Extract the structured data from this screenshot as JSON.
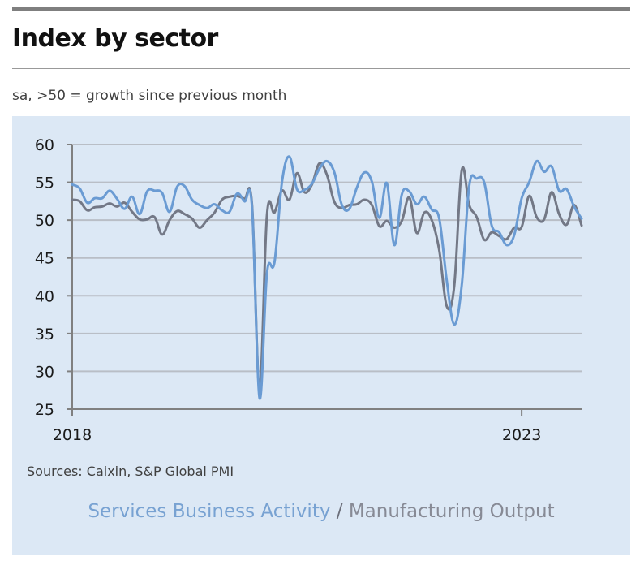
{
  "header": {
    "title": "Index by sector",
    "subtitle": "sa, >50 = growth since previous month"
  },
  "footer": {
    "source": "Sources: Caixin, S&P Global PMI"
  },
  "legend": {
    "separator": "/"
  },
  "colors": {
    "services": "#6a9bd3",
    "manufacturing": "#737886",
    "panel_background": "#dce8f5",
    "gridline": "#b9bec6",
    "axis": "#808080"
  },
  "chart_data": {
    "type": "line",
    "title": "Index by sector",
    "subtitle": "sa, >50 = growth since previous month",
    "xlabel": "",
    "ylabel": "",
    "xlim": [
      "2018-01",
      "2023-09"
    ],
    "ylim": [
      25,
      60
    ],
    "yticks": [
      25,
      30,
      35,
      40,
      45,
      50,
      55,
      60
    ],
    "xticks": [
      {
        "date": "2018-01",
        "label": "2018"
      },
      {
        "date": "2023-01",
        "label": "2023"
      }
    ],
    "grid": true,
    "legend_placement": "bottom-center",
    "x": [
      "2018-01",
      "2018-02",
      "2018-03",
      "2018-04",
      "2018-05",
      "2018-06",
      "2018-07",
      "2018-08",
      "2018-09",
      "2018-10",
      "2018-11",
      "2018-12",
      "2019-01",
      "2019-02",
      "2019-03",
      "2019-04",
      "2019-05",
      "2019-06",
      "2019-07",
      "2019-08",
      "2019-09",
      "2019-10",
      "2019-11",
      "2019-12",
      "2020-01",
      "2020-02",
      "2020-03",
      "2020-04",
      "2020-05",
      "2020-06",
      "2020-07",
      "2020-08",
      "2020-09",
      "2020-10",
      "2020-11",
      "2020-12",
      "2021-01",
      "2021-02",
      "2021-03",
      "2021-04",
      "2021-05",
      "2021-06",
      "2021-07",
      "2021-08",
      "2021-09",
      "2021-10",
      "2021-11",
      "2021-12",
      "2022-01",
      "2022-02",
      "2022-03",
      "2022-04",
      "2022-05",
      "2022-06",
      "2022-07",
      "2022-08",
      "2022-09",
      "2022-10",
      "2022-11",
      "2022-12",
      "2023-01",
      "2023-02",
      "2023-03",
      "2023-04",
      "2023-05",
      "2023-06",
      "2023-07",
      "2023-08",
      "2023-09"
    ],
    "series": [
      {
        "name": "Services Business Activity",
        "color": "#6a9bd3",
        "values": [
          54.7,
          54.2,
          52.3,
          52.9,
          52.9,
          53.9,
          52.8,
          51.5,
          53.1,
          50.8,
          53.8,
          53.9,
          53.6,
          51.1,
          54.4,
          54.5,
          52.7,
          52.0,
          51.6,
          52.1,
          51.3,
          51.1,
          53.5,
          52.5,
          51.8,
          26.5,
          43.0,
          44.4,
          55.0,
          58.4,
          54.1,
          54.0,
          54.8,
          56.8,
          57.8,
          56.3,
          52.0,
          51.5,
          54.3,
          56.3,
          55.1,
          50.3,
          54.9,
          46.7,
          53.4,
          53.8,
          52.1,
          53.1,
          51.4,
          50.2,
          42.0,
          36.2,
          41.4,
          54.5,
          55.5,
          55.0,
          49.3,
          48.4,
          46.7,
          48.0,
          52.9,
          55.0,
          57.8,
          56.4,
          57.1,
          53.9,
          54.1,
          51.8,
          50.2
        ]
      },
      {
        "name": "Manufacturing Output",
        "color": "#737886",
        "values": [
          52.7,
          52.5,
          51.3,
          51.7,
          51.8,
          52.2,
          51.8,
          52.3,
          51.1,
          50.1,
          50.1,
          50.4,
          48.1,
          50.0,
          51.2,
          50.8,
          50.2,
          49.0,
          50.0,
          51.0,
          52.7,
          53.1,
          53.2,
          52.8,
          52.1,
          27.8,
          50.7,
          51.0,
          53.9,
          52.7,
          56.2,
          53.7,
          54.7,
          57.5,
          56.0,
          52.4,
          51.6,
          52.0,
          52.1,
          52.7,
          52.0,
          49.2,
          49.9,
          49.0,
          49.9,
          53.0,
          48.3,
          51.0,
          50.0,
          46.0,
          38.6,
          41.3,
          56.6,
          52.0,
          50.4,
          47.4,
          48.4,
          47.9,
          47.5,
          49.0,
          49.1,
          53.2,
          50.4,
          50.1,
          53.7,
          50.8,
          49.4,
          52.0,
          49.3
        ]
      }
    ]
  }
}
